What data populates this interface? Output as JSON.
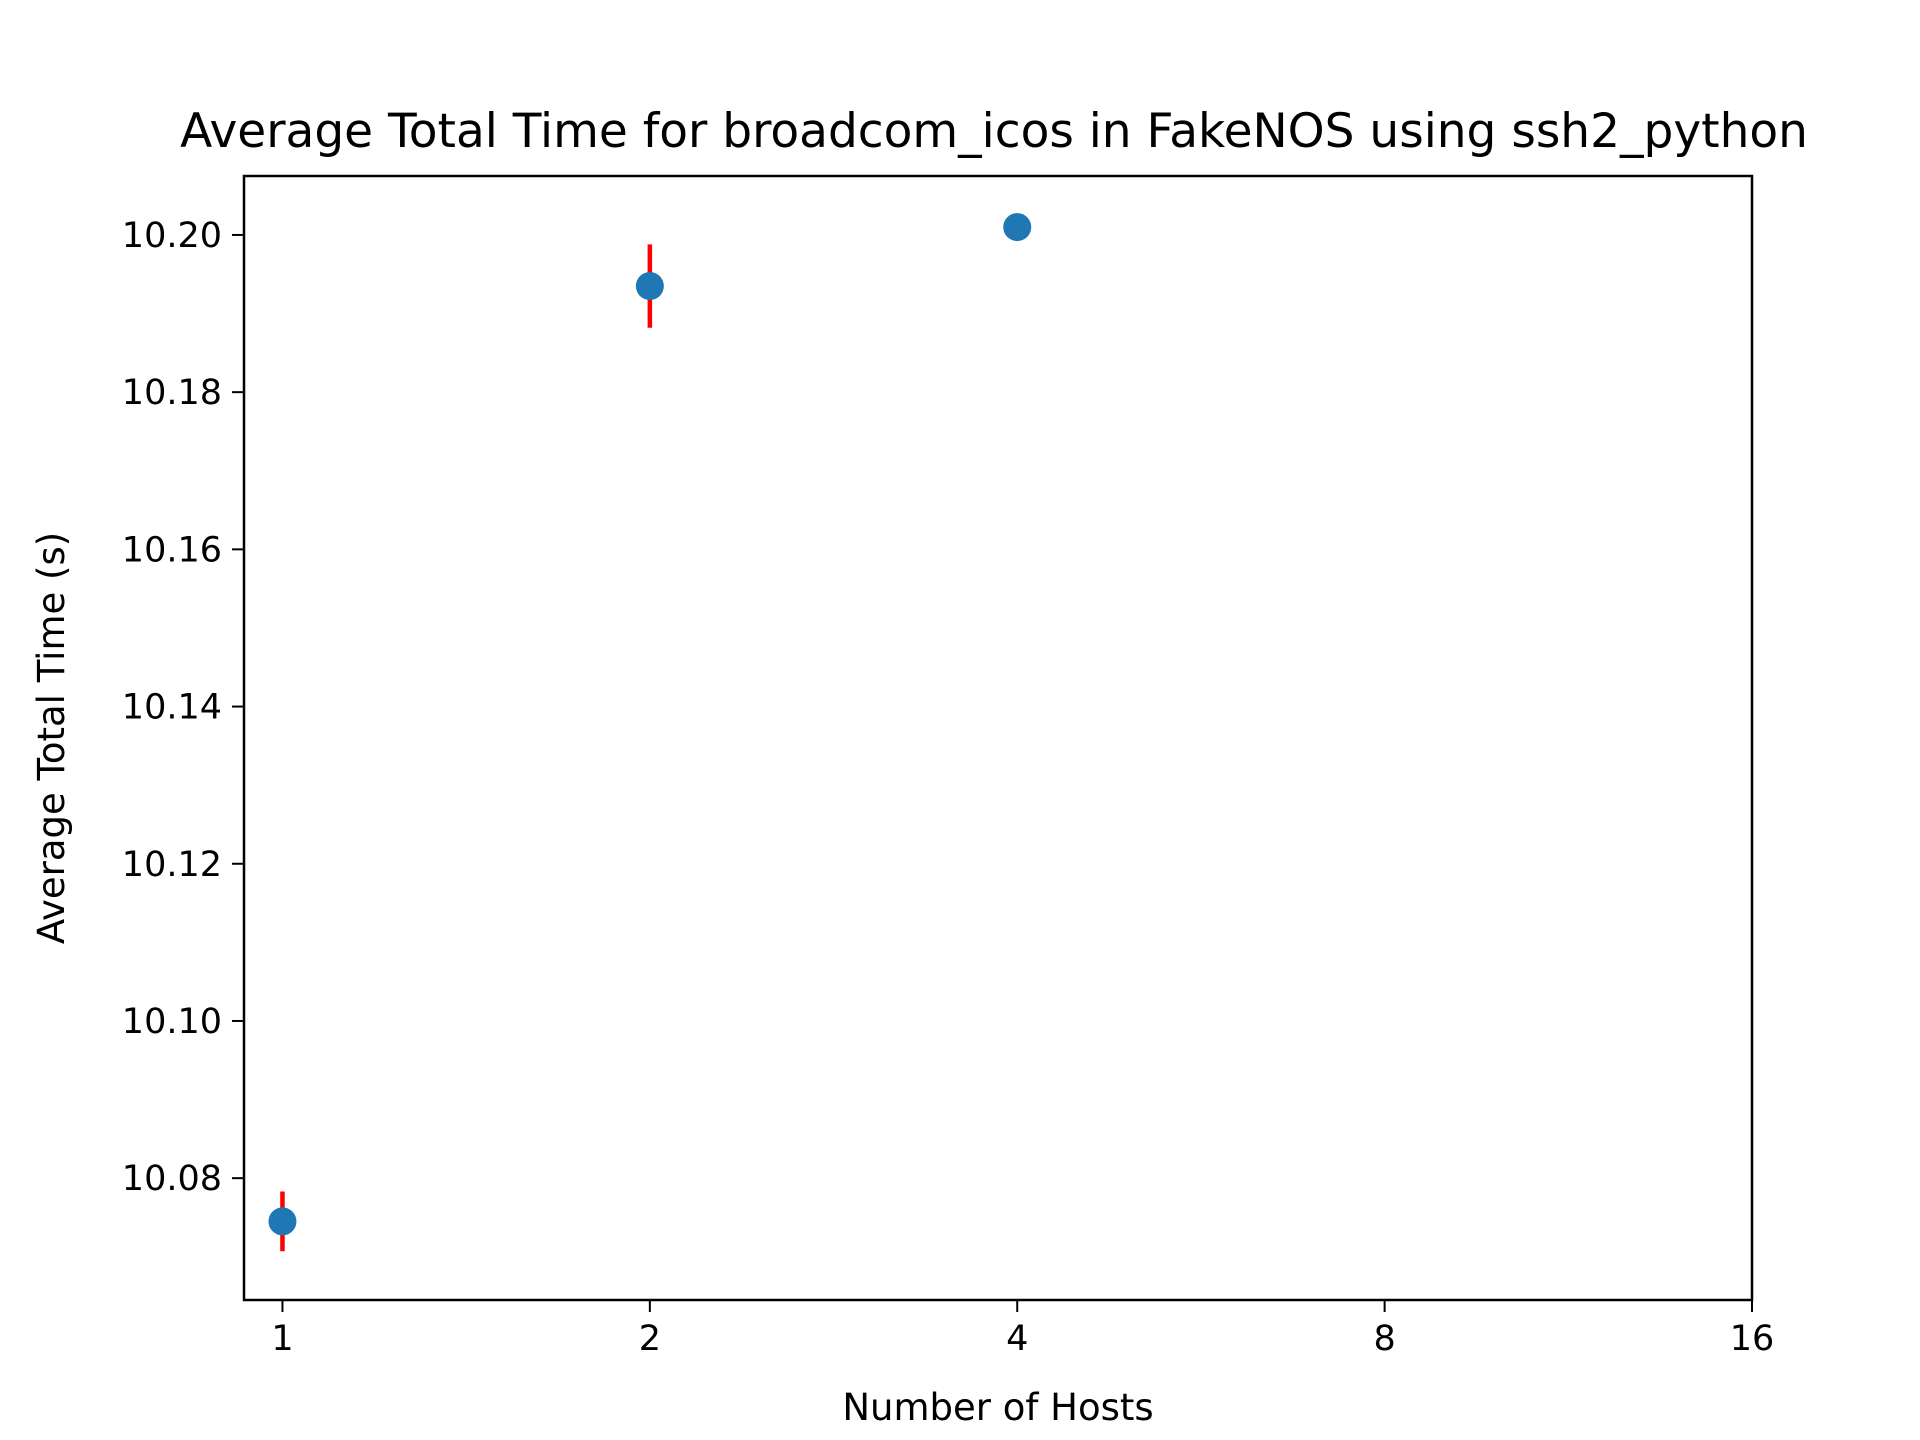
{
  "chart_data": {
    "type": "scatter",
    "title": "Average Total Time for broadcom_icos in FakeNOS using ssh2_python",
    "xlabel": "Number of Hosts",
    "ylabel": "Average Total Time (s)",
    "x_scale": "log2",
    "x_ticks": [
      1,
      2,
      4,
      8,
      16
    ],
    "x_tick_labels": [
      "1",
      "2",
      "4",
      "8",
      "16"
    ],
    "xlim": [
      0.93,
      16
    ],
    "y_ticks": [
      10.08,
      10.1,
      10.12,
      10.14,
      10.16,
      10.18,
      10.2
    ],
    "y_tick_labels": [
      "10.08",
      "10.10",
      "10.12",
      "10.14",
      "10.16",
      "10.18",
      "10.20"
    ],
    "ylim": [
      10.0645,
      10.2075
    ],
    "grid": false,
    "legend": "none",
    "series": [
      {
        "marker_color": "#1f77b4",
        "error_color": "#ff0000",
        "points": [
          {
            "x": 1,
            "y": 10.0745,
            "err": 0.0038
          },
          {
            "x": 2,
            "y": 10.1935,
            "err": 0.0053
          },
          {
            "x": 4,
            "y": 10.201,
            "err": 0
          }
        ]
      }
    ]
  }
}
